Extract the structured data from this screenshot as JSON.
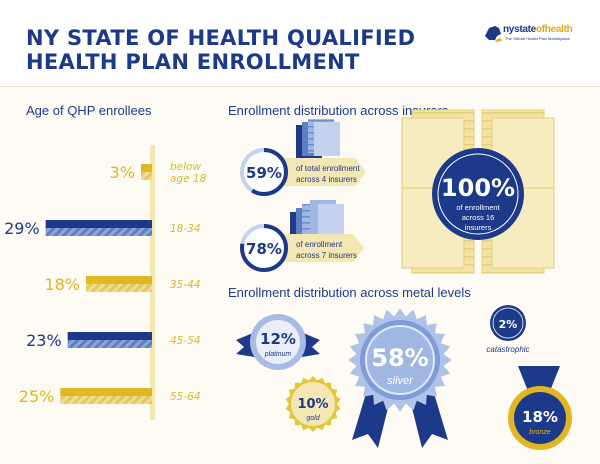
{
  "header": {
    "title_line1": "NY STATE OF HEALTH QUALIFIED",
    "title_line2": "HEALTH PLAN ENROLLMENT",
    "logo_name_a": "nystate",
    "logo_name_b": "ofhealth",
    "logo_tagline": "The Official Health Plan Marketplace"
  },
  "colors": {
    "navy": "#1d3a8a",
    "gold": "#e0b623",
    "pale_gold": "#f3e7b3",
    "light_blue": "#aec3e6"
  },
  "chart_data": [
    {
      "type": "bar",
      "title": "Age of QHP enrollees",
      "categories": [
        "below age 18",
        "18-34",
        "35-44",
        "45-54",
        "55-64"
      ],
      "category_lines": [
        [
          "below",
          "age 18"
        ],
        [
          "18-34"
        ],
        [
          "35-44"
        ],
        [
          "45-54"
        ],
        [
          "55-64"
        ]
      ],
      "values": [
        3,
        29,
        18,
        23,
        25
      ],
      "value_labels": [
        "3%",
        "29%",
        "18%",
        "23%",
        "25%"
      ],
      "bar_colors": [
        "#e0b623",
        "#1d3a8a",
        "#e0b623",
        "#1d3a8a",
        "#e0b623"
      ],
      "orientation": "horizontal",
      "xlim": [
        0,
        30
      ]
    },
    {
      "type": "table",
      "title": "Enrollment distribution across insurers",
      "items": [
        {
          "value": 59,
          "label": "59%",
          "line1": "of total enrollment",
          "line2": "across 4 insurers"
        },
        {
          "value": 78,
          "label": "78%",
          "line1": "of enrollment",
          "line2": "across 7 insurers"
        },
        {
          "value": 100,
          "label": "100%",
          "line1": "of enrollment",
          "line2": "across 16",
          "line3": "insurers"
        }
      ]
    },
    {
      "type": "table",
      "title": "Enrollment distribution across metal levels",
      "levels": [
        {
          "name": "platinum",
          "value": 12,
          "label": "12%"
        },
        {
          "name": "silver",
          "value": 58,
          "label": "58%"
        },
        {
          "name": "catastrophic",
          "value": 2,
          "label": "2%"
        },
        {
          "name": "gold",
          "value": 10,
          "label": "10%"
        },
        {
          "name": "bronze",
          "value": 18,
          "label": "18%"
        }
      ]
    }
  ]
}
